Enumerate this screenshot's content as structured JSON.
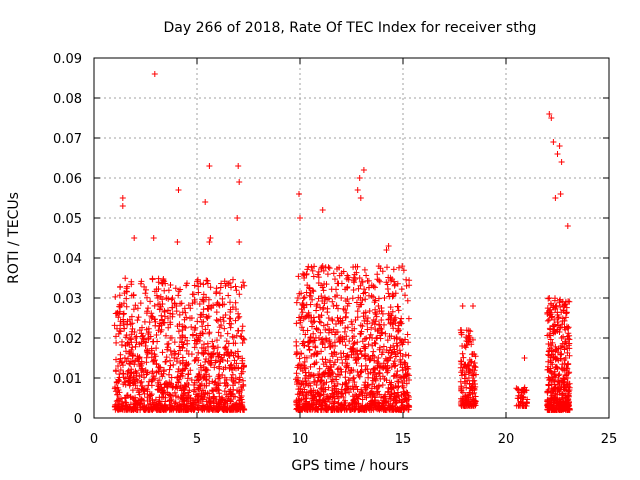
{
  "chart_data": {
    "type": "scatter",
    "title": "Day 266 of 2018, Rate Of TEC Index for receiver sthg",
    "xlabel": "GPS time / hours",
    "ylabel": "ROTI / TECUs",
    "xlim": [
      0,
      25
    ],
    "ylim": [
      0,
      0.09
    ],
    "xticks": [
      0,
      5,
      10,
      15,
      20,
      25
    ],
    "xtick_labels": [
      "0",
      "5",
      "10",
      "15",
      "20",
      "25"
    ],
    "yticks": [
      0,
      0.01,
      0.02,
      0.03,
      0.04,
      0.05,
      0.06,
      0.07,
      0.08,
      0.09
    ],
    "ytick_labels": [
      "0",
      "0.01",
      "0.02",
      "0.03",
      "0.04",
      "0.05",
      "0.06",
      "0.07",
      "0.08",
      "0.09"
    ],
    "grid": true,
    "marker": "+",
    "color": "#ff0000",
    "series": [
      {
        "name": "ROTI",
        "x": [
          2.95,
          4.1,
          5.6,
          7.0,
          7.05,
          1.4,
          1.4,
          9.95,
          10.0,
          13.1,
          12.9,
          12.8,
          22.1,
          22.2,
          22.5,
          22.6,
          22.3,
          22.7,
          22.65,
          22.4,
          23.0,
          1.95,
          2.9,
          4.05,
          5.4,
          5.65,
          5.6,
          6.95,
          7.05,
          11.1,
          12.95,
          14.3,
          14.2,
          17.9,
          18.4,
          20.9,
          1.1,
          1.3,
          1.5,
          1.7,
          2.0,
          2.2,
          2.5,
          2.8,
          3.1,
          3.4,
          3.7,
          4.0,
          4.3,
          4.6,
          4.9,
          5.2,
          5.5,
          5.8,
          6.1,
          6.4,
          6.7,
          7.0,
          9.9,
          10.2,
          10.5,
          10.8,
          11.1,
          11.4,
          11.7,
          12.0,
          12.3,
          12.6,
          12.9,
          13.2,
          13.5,
          13.8,
          14.1,
          14.4,
          14.7,
          15.0,
          15.1,
          17.8,
          18.0,
          18.2,
          18.4,
          20.6,
          20.8,
          21.0,
          22.1,
          22.3,
          22.5,
          22.7,
          22.9,
          23.0
        ],
        "y": [
          0.086,
          0.057,
          0.063,
          0.063,
          0.059,
          0.055,
          0.053,
          0.056,
          0.05,
          0.062,
          0.06,
          0.057,
          0.076,
          0.075,
          0.066,
          0.068,
          0.069,
          0.064,
          0.056,
          0.055,
          0.048,
          0.045,
          0.045,
          0.044,
          0.054,
          0.045,
          0.044,
          0.05,
          0.044,
          0.052,
          0.055,
          0.043,
          0.042,
          0.028,
          0.028,
          0.015,
          0.009,
          0.012,
          0.015,
          0.01,
          0.02,
          0.013,
          0.018,
          0.025,
          0.03,
          0.012,
          0.02,
          0.028,
          0.022,
          0.016,
          0.029,
          0.012,
          0.025,
          0.018,
          0.01,
          0.008,
          0.012,
          0.025,
          0.03,
          0.035,
          0.02,
          0.028,
          0.038,
          0.025,
          0.018,
          0.03,
          0.028,
          0.032,
          0.035,
          0.025,
          0.02,
          0.015,
          0.03,
          0.025,
          0.018,
          0.012,
          0.006,
          0.022,
          0.018,
          0.01,
          0.008,
          0.007,
          0.005,
          0.004,
          0.03,
          0.028,
          0.024,
          0.02,
          0.015,
          0.01
        ],
        "clusters": [
          {
            "x_range": [
              1.0,
              7.3
            ],
            "y_range": [
              0.002,
              0.035
            ],
            "count": 1300
          },
          {
            "x_range": [
              9.8,
              15.3
            ],
            "y_range": [
              0.002,
              0.038
            ],
            "count": 1250
          },
          {
            "x_range": [
              17.8,
              18.55
            ],
            "y_range": [
              0.003,
              0.022
            ],
            "count": 160
          },
          {
            "x_range": [
              20.5,
              21.05
            ],
            "y_range": [
              0.003,
              0.008
            ],
            "count": 50
          },
          {
            "x_range": [
              22.0,
              23.1
            ],
            "y_range": [
              0.002,
              0.03
            ],
            "count": 420
          }
        ]
      }
    ]
  }
}
